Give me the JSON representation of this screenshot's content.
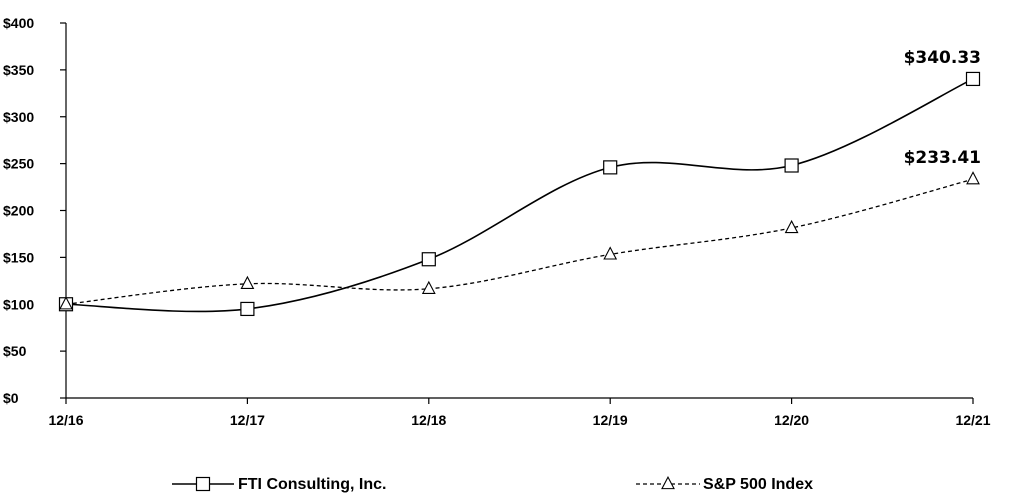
{
  "chart_data": {
    "type": "line",
    "title": "",
    "xlabel": "",
    "ylabel": "",
    "categories": [
      "12/16",
      "12/17",
      "12/18",
      "12/19",
      "12/20",
      "12/21"
    ],
    "y_tick_labels": [
      "$0",
      "$50",
      "$100",
      "$150",
      "$200",
      "$250",
      "$300",
      "$350",
      "$400"
    ],
    "ylim": [
      0,
      400
    ],
    "grid": false,
    "legend_position": "bottom",
    "series": [
      {
        "name": "FTI Consulting, Inc.",
        "values": [
          100,
          95,
          148,
          246,
          248,
          340.33
        ],
        "marker": "square",
        "line_style": "solid",
        "end_label": "$340.33",
        "color": "#000000"
      },
      {
        "name": "S&P 500 Index",
        "values": [
          100,
          121.8,
          116.5,
          153.2,
          181.4,
          233.41
        ],
        "marker": "triangle",
        "line_style": "dashed",
        "end_label": "$233.41",
        "color": "#000000"
      }
    ]
  }
}
